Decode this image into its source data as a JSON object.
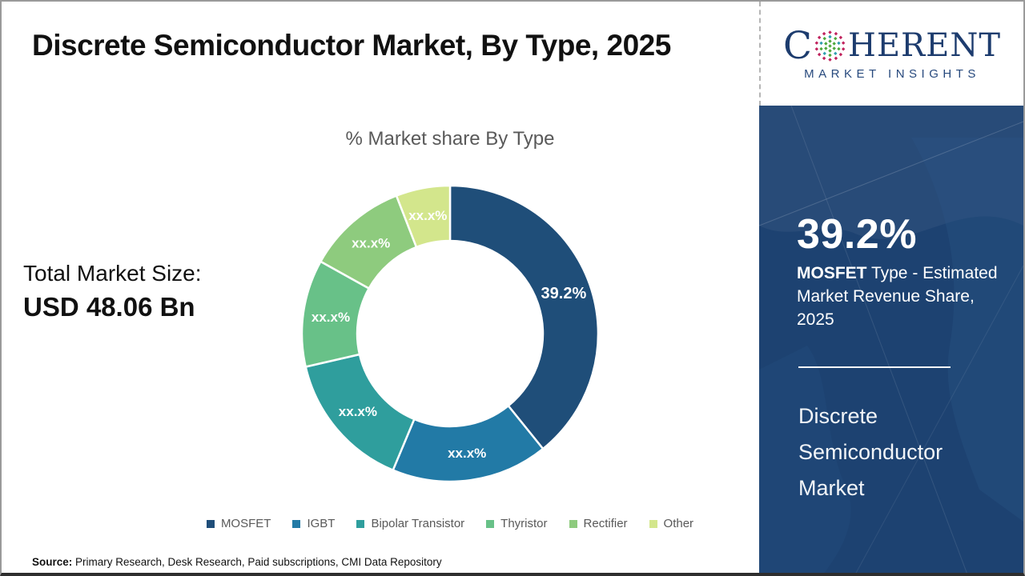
{
  "page": {
    "title": "Discrete Semiconductor Market, By Type, 2025"
  },
  "logo": {
    "brand_first": "C",
    "brand_rest": "HERENT",
    "subtitle": "MARKET INSIGHTS",
    "globe_icon": "dotted-globe"
  },
  "stats": {
    "total_label": "Total Market Size:",
    "total_value": "USD 48.06 Bn"
  },
  "panel": {
    "highlight_value": "39.2%",
    "highlight_bold": "MOSFET",
    "highlight_rest": " Type - Estimated Market Revenue Share, 2025",
    "market_name": "Discrete Semiconductor Market"
  },
  "source": {
    "label": "Source:",
    "text": " Primary Research, Desk Research, Paid subscriptions, CMI Data Repository"
  },
  "chart_data": {
    "type": "pie",
    "subtype": "donut",
    "title": "% Market share By Type",
    "categories": [
      "MOSFET",
      "IGBT",
      "Bipolar Transistor",
      "Thyristor",
      "Rectifier",
      "Other"
    ],
    "values": [
      39.2,
      17.1,
      15.1,
      11.7,
      11.0,
      5.9
    ],
    "slice_labels": [
      "39.2%",
      "xx.x%",
      "xx.x%",
      "xx.x%",
      "xx.x%",
      "xx.x%"
    ],
    "colors": [
      "#1f4e79",
      "#227aa6",
      "#2f9e9d",
      "#68c188",
      "#8ecb7e",
      "#d3e68c"
    ],
    "label_color": "#ffffff",
    "start_angle_deg": 0,
    "direction": "clockwise",
    "inner_radius_frac": 0.627,
    "legend_position": "bottom",
    "note_masked_values": "Only MOSFET share (39.2%) is disclosed; remaining slices show xx.x%"
  },
  "theme": {
    "panel_navy": "#1d4271",
    "logo_navy": "#1d3c6e",
    "logo_sub_navy": "#27497d",
    "title_color": "#111111",
    "muted": "#595959",
    "dot_pink": "#c0215c",
    "dot_green": "#4ea83c",
    "dot_teal": "#2f9fae"
  }
}
